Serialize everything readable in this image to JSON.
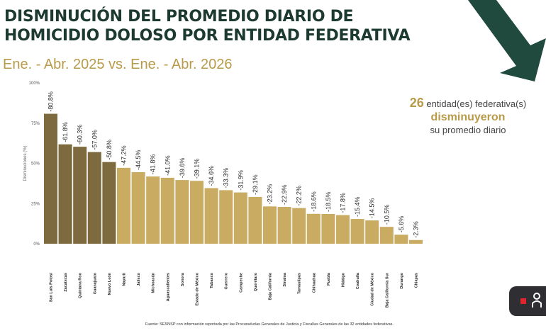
{
  "header": {
    "title_line1": "DISMINUCIÓN DEL PROMEDIO DIARIO DE",
    "title_line2": "HOMICIDIO DOLOSO POR ENTIDAD FEDERATIVA",
    "subtitle": "Ene. - Abr. 2025 vs. Ene. - Abr. 2026"
  },
  "summary": {
    "count": "26",
    "line1": " entidad(es) federativa(s)",
    "verb": "disminuyeron",
    "line3": "su promedio diario"
  },
  "source": "Fuente: SESNSP con información reportada por las Procuradurías Generales de Justicia y Fiscalías Generales de las 32 entidades federativas.",
  "colors": {
    "title": "#1d3a30",
    "gold": "#b89b4a",
    "dark_bar": "#7d6a3e",
    "light_bar": "#c9ab62",
    "arrow": "#1f4a3d"
  },
  "widget": {
    "icons": [
      "red-square-icon",
      "person-icon"
    ]
  },
  "chart_data": {
    "type": "bar",
    "ylabel": "Disminuciones (%)",
    "ylim": [
      0,
      100
    ],
    "yticks": [
      "0%",
      "25%",
      "50%",
      "75%",
      "100%"
    ],
    "categories": [
      "San Luis Potosí",
      "Zacatecas",
      "Quintana Roo",
      "Guanajuato",
      "Nuevo León",
      "Nayarit",
      "Jalisco",
      "Michoacán",
      "Aguascalientes",
      "Sonora",
      "Estado de México",
      "Tabasco",
      "Guerrero",
      "Campeche",
      "Querétaro",
      "Baja California",
      "Sinaloa",
      "Tamaulipas",
      "Chihuahua",
      "Puebla",
      "Hidalgo",
      "Coahuila",
      "Ciudad de México",
      "Baja California Sur",
      "Durango",
      "Chiapas"
    ],
    "values": [
      80.8,
      61.8,
      60.3,
      57.0,
      50.8,
      47.2,
      44.5,
      41.8,
      41.0,
      39.6,
      39.1,
      34.6,
      33.3,
      31.9,
      29.1,
      23.2,
      22.9,
      22.2,
      18.6,
      18.5,
      17.8,
      15.4,
      14.5,
      10.5,
      5.6,
      2.3
    ],
    "labels": [
      "-80.8%",
      "-61.8%",
      "-60.3%",
      "-57.0%",
      "-50.8%",
      "-47.2%",
      "-44.5%",
      "-41.8%",
      "-41.0%",
      "-39.6%",
      "-39.1%",
      "-34.6%",
      "-33.3%",
      "-31.9%",
      "-29.1%",
      "-23.2%",
      "-22.9%",
      "-22.2%",
      "-18.6%",
      "-18.5%",
      "-17.8%",
      "-15.4%",
      "-14.5%",
      "-10.5%",
      "-5.6%",
      "-2.3%"
    ],
    "dark_count": 5,
    "grid": false,
    "legend": "none"
  }
}
